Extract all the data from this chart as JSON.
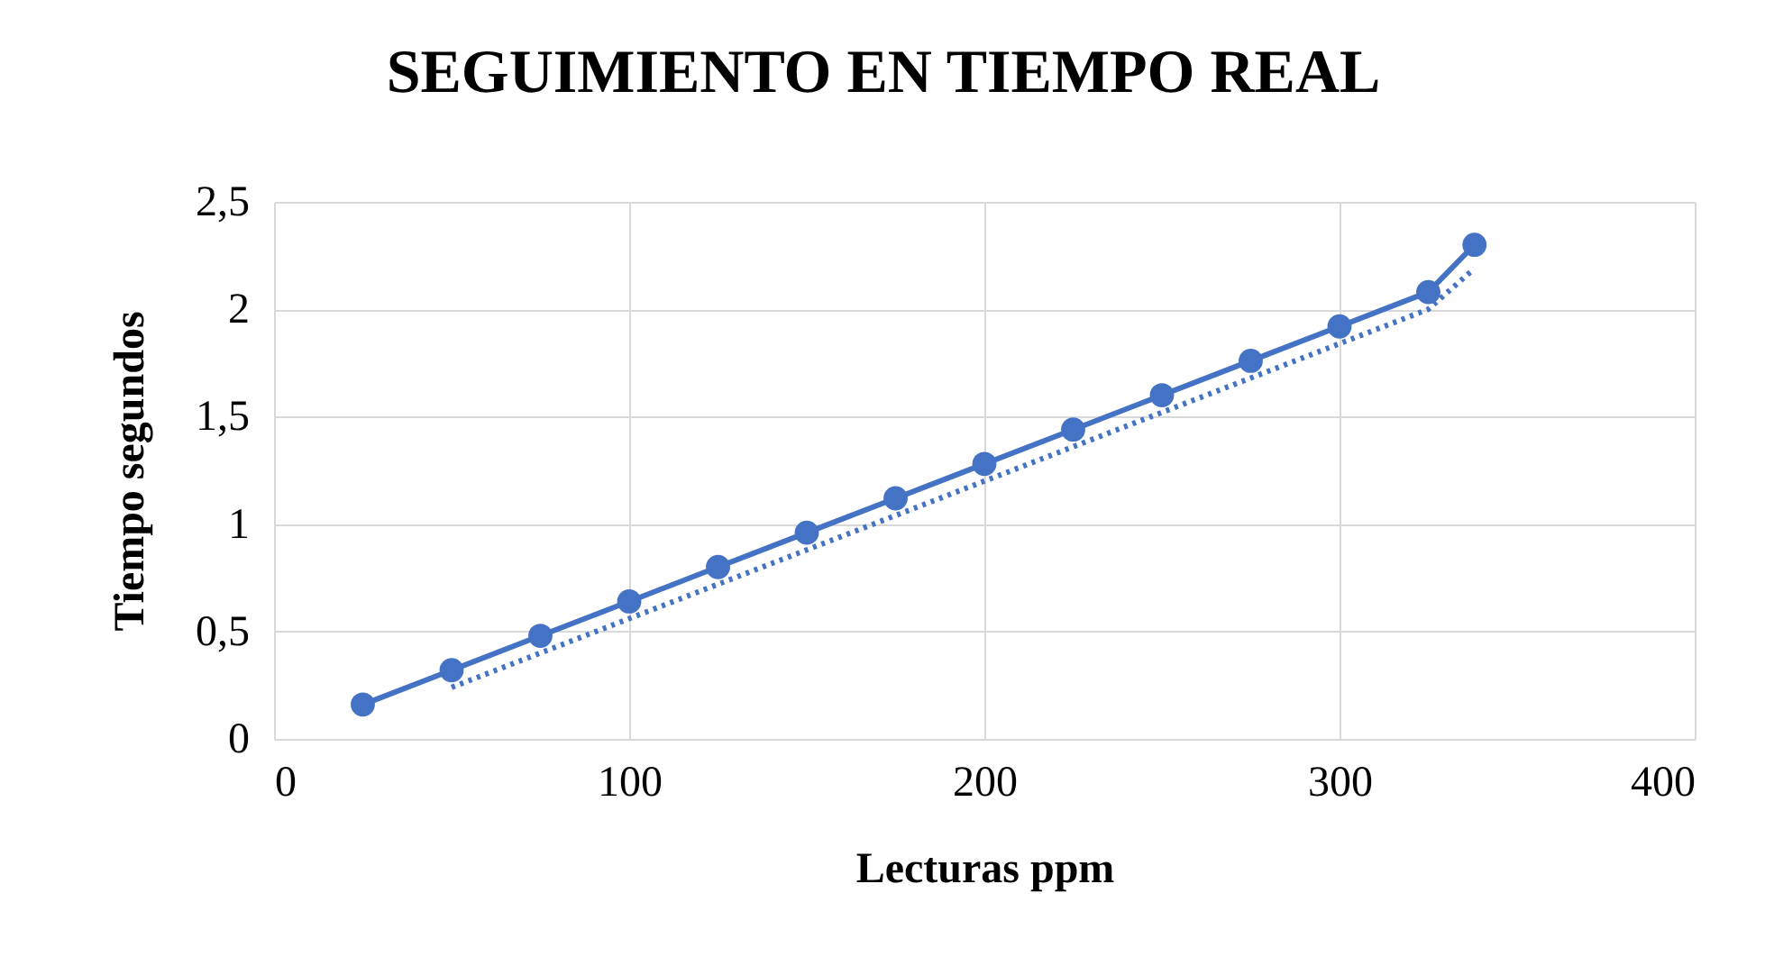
{
  "chart_data": {
    "type": "line",
    "title": "SEGUIMIENTO EN TIEMPO REAL",
    "xlabel": "Lecturas ppm",
    "ylabel": "Tiempo segundos",
    "x": [
      25,
      50,
      75,
      100,
      125,
      150,
      175,
      200,
      225,
      250,
      275,
      300,
      325,
      338
    ],
    "series": [
      {
        "color": "#4472c4",
        "marker": "circle",
        "line_style": "solid",
        "values": [
          0.16,
          0.32,
          0.48,
          0.64,
          0.8,
          0.96,
          1.12,
          1.28,
          1.44,
          1.6,
          1.76,
          1.92,
          2.08,
          2.3
        ]
      },
      {
        "type": "line",
        "color": "#4472c4",
        "marker": "none",
        "line_style": "dotted",
        "x": [
          50,
          75,
          100,
          125,
          150,
          175,
          200,
          225,
          250,
          275,
          300,
          325,
          338
        ],
        "values": [
          0.24,
          0.4,
          0.56,
          0.72,
          0.88,
          1.04,
          1.2,
          1.36,
          1.52,
          1.68,
          1.84,
          2.0,
          2.19
        ]
      }
    ],
    "xlim": [
      0,
      400
    ],
    "xticks": [
      0,
      100,
      200,
      300,
      400
    ],
    "ylim": [
      0,
      2.5
    ],
    "yticks": [
      0,
      {
        "value": 0.5,
        "label": "0,5"
      },
      1,
      {
        "value": 1.5,
        "label": "1,5"
      },
      2,
      {
        "value": 2.5,
        "label": "2,5"
      }
    ],
    "grid": true
  }
}
